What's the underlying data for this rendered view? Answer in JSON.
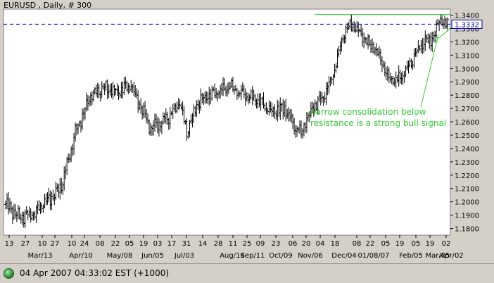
{
  "chart_data": {
    "type": "candlestick",
    "title": "EURUSD , Daily, # 300",
    "ylim": [
      1.175,
      1.3445
    ],
    "y_ticks": [
      "1.3400",
      "1.3300",
      "1.3200",
      "1.3100",
      "1.3000",
      "1.2900",
      "1.2800",
      "1.2700",
      "1.2600",
      "1.2500",
      "1.2400",
      "1.2300",
      "1.2200",
      "1.2100",
      "1.2000",
      "1.1900",
      "1.1800"
    ],
    "x_day_labels": [
      "13",
      "27",
      "10",
      "27",
      "10",
      "24",
      "08",
      "22",
      "05",
      "19",
      "03",
      "17",
      "31",
      "14",
      "28",
      "11",
      "25",
      "09",
      "23",
      "06",
      "20",
      "04",
      "18",
      "08",
      "22",
      "05",
      "19",
      "05",
      "19",
      "02"
    ],
    "x_month_labels": [
      "Mar/13",
      "Apr/10",
      "May/08",
      "Jun/05",
      "Jul/03",
      "Aug/14",
      "Sep/11",
      "Oct/09",
      "Nov/06",
      "Dec/04",
      "01/08/07",
      "Feb/05",
      "Mar/05",
      "Apr/02"
    ],
    "current_price": "1.3332",
    "current_price_value": 1.3332,
    "resistance": 1.3405,
    "annotation_line1": "narrow consolidation below",
    "annotation_line2": "resistance is a strong bull signal",
    "price_keypoints": [
      [
        0,
        1.198
      ],
      [
        10,
        1.188
      ],
      [
        18,
        1.19
      ],
      [
        30,
        1.2
      ],
      [
        40,
        1.212
      ],
      [
        50,
        1.252
      ],
      [
        60,
        1.278
      ],
      [
        70,
        1.285
      ],
      [
        80,
        1.282
      ],
      [
        90,
        1.288
      ],
      [
        97,
        1.27
      ],
      [
        104,
        1.255
      ],
      [
        115,
        1.262
      ],
      [
        125,
        1.275
      ],
      [
        130,
        1.252
      ],
      [
        138,
        1.275
      ],
      [
        150,
        1.282
      ],
      [
        160,
        1.286
      ],
      [
        172,
        1.28
      ],
      [
        182,
        1.275
      ],
      [
        190,
        1.268
      ],
      [
        200,
        1.27
      ],
      [
        208,
        1.255
      ],
      [
        212,
        1.252
      ],
      [
        220,
        1.27
      ],
      [
        230,
        1.282
      ],
      [
        236,
        1.3
      ],
      [
        242,
        1.325
      ],
      [
        248,
        1.333
      ],
      [
        255,
        1.325
      ],
      [
        262,
        1.318
      ],
      [
        268,
        1.31
      ],
      [
        274,
        1.295
      ],
      [
        280,
        1.29
      ],
      [
        288,
        1.3
      ],
      [
        296,
        1.315
      ],
      [
        302,
        1.32
      ],
      [
        308,
        1.325
      ],
      [
        311,
        1.336
      ],
      [
        316,
        1.333
      ]
    ],
    "colors": {
      "plot_bg": "#ffffff",
      "bars": "#000000",
      "resistance_line": "#33cc33",
      "current_line": "#0000aa",
      "annotation": "#33cc33",
      "price_label_bg": "#ffffff"
    }
  },
  "status": {
    "datetime": "04 Apr 2007 04:33:02  EST (+1000)"
  }
}
